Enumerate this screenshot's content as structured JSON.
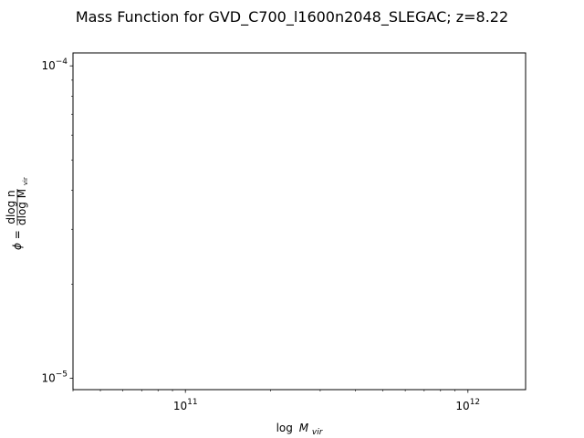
{
  "chart_data": {
    "type": "line",
    "title": "Mass Function for GVD_C700_l1600n2048_SLEGAC; z=8.22",
    "xlabel_base": "log",
    "xlabel_var": "M",
    "xlabel_sub": "vir",
    "ylabel_phi": "ϕ =",
    "ylabel_num": "dlog n",
    "ylabel_den_pre": "dlog M",
    "ylabel_den_sub": "vir",
    "xscale": "log",
    "yscale": "log",
    "xlim": [
      40000000000,
      1600000000000
    ],
    "ylim": [
      9.2e-06,
      0.00011
    ],
    "xticks": [
      {
        "value": 100000000000,
        "base": "10",
        "exp": "11"
      },
      {
        "value": 1000000000000,
        "base": "10",
        "exp": "12"
      }
    ],
    "yticks": [
      {
        "value": 1e-05,
        "base": "10",
        "exp": "−5"
      },
      {
        "value": 0.0001,
        "base": "10",
        "exp": "−4"
      }
    ],
    "series": [],
    "grid": false
  }
}
